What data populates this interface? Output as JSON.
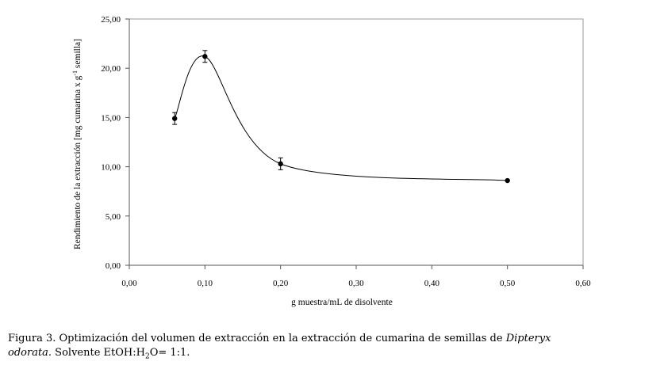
{
  "chart_data": {
    "type": "scatter",
    "xlabel": "g muestra/mL de disolvente",
    "ylabel_main": "Rendimiento de la extracción [mg cumarina x g",
    "ylabel_sup": "-1",
    "ylabel_end": " semilla]",
    "xlim": [
      0,
      0.6
    ],
    "ylim": [
      0,
      25
    ],
    "x_ticks": [
      "0,00",
      "0,10",
      "0,20",
      "0,30",
      "0,40",
      "0,50",
      "0,60"
    ],
    "y_ticks": [
      "0,00",
      "5,00",
      "10,00",
      "15,00",
      "20,00",
      "25,00"
    ],
    "x_tick_values": [
      0,
      0.1,
      0.2,
      0.3,
      0.4,
      0.5,
      0.6
    ],
    "y_tick_values": [
      0,
      5,
      10,
      15,
      20,
      25
    ],
    "grid": false,
    "smooth_line": true,
    "series": [
      {
        "x": [
          0.06,
          0.1,
          0.2,
          0.5
        ],
        "y": [
          14.9,
          21.2,
          10.3,
          8.6
        ],
        "error": [
          0.6,
          0.6,
          0.6,
          0
        ]
      }
    ]
  },
  "caption": {
    "line1": "Figura 3. Optimización del volumen de extracción en la extracción de cumarina de semillas de",
    "species1": "Dipteryx",
    "species2": "odorata.",
    "line2a": " Solvente EtOH:H",
    "sub": "2",
    "line2b": "O= 1:1."
  }
}
